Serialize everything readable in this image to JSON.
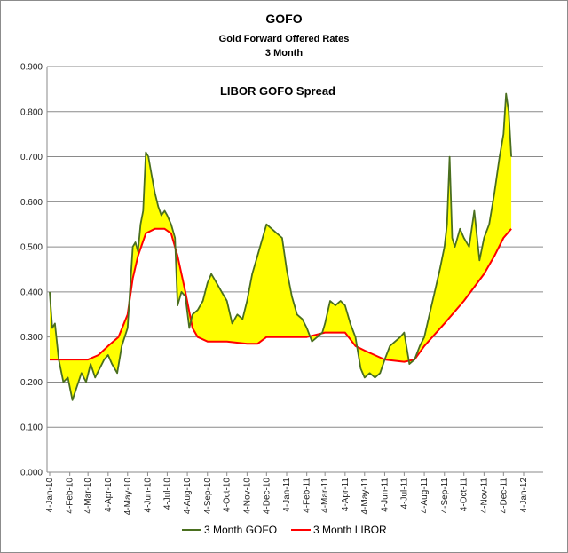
{
  "chart_data": {
    "type": "line",
    "title": "GOFO",
    "subtitle_1": "Gold Forward Offered Rates",
    "subtitle_2": "3 Month",
    "annotation": "LIBOR GOFO Spread",
    "ylim": [
      0,
      0.9
    ],
    "y_ticks": [
      "0.000",
      "0.100",
      "0.200",
      "0.300",
      "0.400",
      "0.500",
      "0.600",
      "0.700",
      "0.800",
      "0.900"
    ],
    "x_ticks": [
      "4-Jan-10",
      "4-Feb-10",
      "4-Mar-10",
      "4-Apr-10",
      "4-May-10",
      "4-Jun-10",
      "4-Jul-10",
      "4-Aug-10",
      "4-Sep-10",
      "4-Oct-10",
      "4-Nov-10",
      "4-Dec-10",
      "4-Jan-11",
      "4-Feb-11",
      "4-Mar-11",
      "4-Apr-11",
      "4-May-11",
      "4-Jun-11",
      "4-Jul-11",
      "4-Aug-11",
      "4-Sep-11",
      "4-Oct-11",
      "4-Nov-11",
      "4-Dec-11",
      "4-Jan-12"
    ],
    "grid": true,
    "legend_position": "bottom",
    "spread_fill_color": "#ffff00",
    "series": [
      {
        "name": "3 Month GOFO",
        "color": "#4a6f1f",
        "points": [
          [
            "4-Jan-10",
            0.4
          ],
          [
            "8-Jan-10",
            0.32
          ],
          [
            "12-Jan-10",
            0.33
          ],
          [
            "18-Jan-10",
            0.25
          ],
          [
            "25-Jan-10",
            0.2
          ],
          [
            "1-Feb-10",
            0.21
          ],
          [
            "8-Feb-10",
            0.16
          ],
          [
            "15-Feb-10",
            0.19
          ],
          [
            "22-Feb-10",
            0.22
          ],
          [
            "1-Mar-10",
            0.2
          ],
          [
            "8-Mar-10",
            0.24
          ],
          [
            "15-Mar-10",
            0.21
          ],
          [
            "22-Mar-10",
            0.23
          ],
          [
            "29-Mar-10",
            0.25
          ],
          [
            "4-Apr-10",
            0.26
          ],
          [
            "10-Apr-10",
            0.24
          ],
          [
            "18-Apr-10",
            0.22
          ],
          [
            "25-Apr-10",
            0.28
          ],
          [
            "4-May-10",
            0.32
          ],
          [
            "8-May-10",
            0.41
          ],
          [
            "12-May-10",
            0.5
          ],
          [
            "16-May-10",
            0.51
          ],
          [
            "20-May-10",
            0.49
          ],
          [
            "24-May-10",
            0.55
          ],
          [
            "28-May-10",
            0.58
          ],
          [
            "1-Jun-10",
            0.71
          ],
          [
            "5-Jun-10",
            0.7
          ],
          [
            "10-Jun-10",
            0.66
          ],
          [
            "15-Jun-10",
            0.62
          ],
          [
            "20-Jun-10",
            0.59
          ],
          [
            "25-Jun-10",
            0.57
          ],
          [
            "30-Jun-10",
            0.58
          ],
          [
            "4-Jul-10",
            0.57
          ],
          [
            "10-Jul-10",
            0.55
          ],
          [
            "16-Jul-10",
            0.52
          ],
          [
            "20-Jul-10",
            0.37
          ],
          [
            "26-Jul-10",
            0.4
          ],
          [
            "1-Aug-10",
            0.39
          ],
          [
            "7-Aug-10",
            0.32
          ],
          [
            "12-Aug-10",
            0.35
          ],
          [
            "20-Aug-10",
            0.36
          ],
          [
            "28-Aug-10",
            0.38
          ],
          [
            "4-Sep-10",
            0.42
          ],
          [
            "10-Sep-10",
            0.44
          ],
          [
            "18-Sep-10",
            0.42
          ],
          [
            "26-Sep-10",
            0.4
          ],
          [
            "4-Oct-10",
            0.38
          ],
          [
            "12-Oct-10",
            0.33
          ],
          [
            "20-Oct-10",
            0.35
          ],
          [
            "28-Oct-10",
            0.34
          ],
          [
            "4-Nov-10",
            0.38
          ],
          [
            "12-Nov-10",
            0.44
          ],
          [
            "20-Nov-10",
            0.48
          ],
          [
            "28-Nov-10",
            0.52
          ],
          [
            "4-Dec-10",
            0.55
          ],
          [
            "12-Dec-10",
            0.54
          ],
          [
            "20-Dec-10",
            0.53
          ],
          [
            "28-Dec-10",
            0.52
          ],
          [
            "4-Jan-11",
            0.45
          ],
          [
            "12-Jan-11",
            0.39
          ],
          [
            "20-Jan-11",
            0.35
          ],
          [
            "28-Jan-11",
            0.34
          ],
          [
            "4-Feb-11",
            0.32
          ],
          [
            "12-Feb-11",
            0.29
          ],
          [
            "20-Feb-11",
            0.3
          ],
          [
            "28-Feb-11",
            0.31
          ],
          [
            "4-Mar-11",
            0.33
          ],
          [
            "12-Mar-11",
            0.38
          ],
          [
            "20-Mar-11",
            0.37
          ],
          [
            "28-Mar-11",
            0.38
          ],
          [
            "4-Apr-11",
            0.37
          ],
          [
            "12-Apr-11",
            0.33
          ],
          [
            "20-Apr-11",
            0.3
          ],
          [
            "28-Apr-11",
            0.23
          ],
          [
            "4-May-11",
            0.21
          ],
          [
            "12-May-11",
            0.22
          ],
          [
            "20-May-11",
            0.21
          ],
          [
            "28-May-11",
            0.22
          ],
          [
            "4-Jun-11",
            0.25
          ],
          [
            "12-Jun-11",
            0.28
          ],
          [
            "20-Jun-11",
            0.29
          ],
          [
            "28-Jun-11",
            0.3
          ],
          [
            "4-Jul-11",
            0.31
          ],
          [
            "12-Jul-11",
            0.24
          ],
          [
            "20-Jul-11",
            0.25
          ],
          [
            "28-Jul-11",
            0.28
          ],
          [
            "4-Aug-11",
            0.3
          ],
          [
            "12-Aug-11",
            0.35
          ],
          [
            "20-Aug-11",
            0.4
          ],
          [
            "28-Aug-11",
            0.45
          ],
          [
            "4-Sep-11",
            0.5
          ],
          [
            "8-Sep-11",
            0.55
          ],
          [
            "12-Sep-11",
            0.7
          ],
          [
            "16-Sep-11",
            0.52
          ],
          [
            "20-Sep-11",
            0.5
          ],
          [
            "28-Sep-11",
            0.54
          ],
          [
            "4-Oct-11",
            0.52
          ],
          [
            "12-Oct-11",
            0.5
          ],
          [
            "20-Oct-11",
            0.58
          ],
          [
            "28-Oct-11",
            0.47
          ],
          [
            "4-Nov-11",
            0.52
          ],
          [
            "12-Nov-11",
            0.55
          ],
          [
            "20-Nov-11",
            0.62
          ],
          [
            "28-Nov-11",
            0.7
          ],
          [
            "4-Dec-11",
            0.75
          ],
          [
            "8-Dec-11",
            0.84
          ],
          [
            "12-Dec-11",
            0.8
          ],
          [
            "16-Dec-11",
            0.7
          ]
        ]
      },
      {
        "name": "3 Month LIBOR",
        "color": "#ff0000",
        "points": [
          [
            "4-Jan-10",
            0.25
          ],
          [
            "4-Feb-10",
            0.25
          ],
          [
            "4-Mar-10",
            0.25
          ],
          [
            "20-Mar-10",
            0.26
          ],
          [
            "4-Apr-10",
            0.28
          ],
          [
            "20-Apr-10",
            0.3
          ],
          [
            "4-May-10",
            0.35
          ],
          [
            "12-May-10",
            0.43
          ],
          [
            "20-May-10",
            0.48
          ],
          [
            "1-Jun-10",
            0.53
          ],
          [
            "15-Jun-10",
            0.54
          ],
          [
            "30-Jun-10",
            0.54
          ],
          [
            "10-Jul-10",
            0.53
          ],
          [
            "20-Jul-10",
            0.48
          ],
          [
            "1-Aug-10",
            0.4
          ],
          [
            "12-Aug-10",
            0.32
          ],
          [
            "20-Aug-10",
            0.3
          ],
          [
            "4-Sep-10",
            0.29
          ],
          [
            "4-Oct-10",
            0.29
          ],
          [
            "4-Nov-10",
            0.285
          ],
          [
            "20-Nov-10",
            0.285
          ],
          [
            "4-Dec-10",
            0.3
          ],
          [
            "4-Jan-11",
            0.3
          ],
          [
            "4-Feb-11",
            0.3
          ],
          [
            "4-Mar-11",
            0.31
          ],
          [
            "4-Apr-11",
            0.31
          ],
          [
            "20-Apr-11",
            0.28
          ],
          [
            "4-May-11",
            0.27
          ],
          [
            "4-Jun-11",
            0.25
          ],
          [
            "4-Jul-11",
            0.245
          ],
          [
            "20-Jul-11",
            0.25
          ],
          [
            "4-Aug-11",
            0.28
          ],
          [
            "4-Sep-11",
            0.33
          ],
          [
            "4-Oct-11",
            0.38
          ],
          [
            "4-Nov-11",
            0.44
          ],
          [
            "20-Nov-11",
            0.48
          ],
          [
            "4-Dec-11",
            0.52
          ],
          [
            "16-Dec-11",
            0.54
          ]
        ]
      }
    ]
  }
}
